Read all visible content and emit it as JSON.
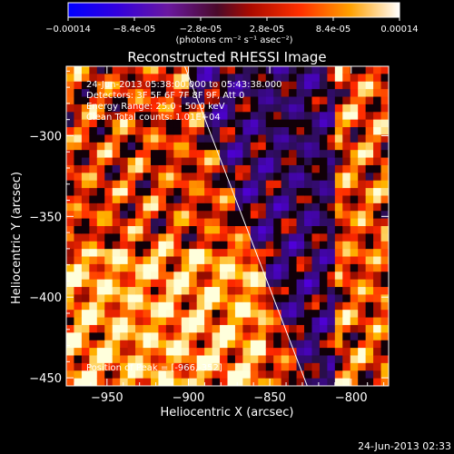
{
  "colorbar": {
    "ticks": [
      "-0.00014",
      "-8.4e-05",
      "-2.8e-05",
      "2.8e-05",
      "8.4e-05",
      "0.00014"
    ],
    "units_line": "(photons cm⁻² s⁻¹ asec⁻²)",
    "range": [
      -0.00014,
      0.00014
    ]
  },
  "chart_data": {
    "type": "heatmap",
    "title": "Reconstructed RHESSI Image",
    "xlabel": "Heliocentric X (arcsec)",
    "ylabel": "Heliocentric Y (arcsec)",
    "xlim": [
      -975,
      -777
    ],
    "ylim": [
      -455,
      -257
    ],
    "x_ticks": [
      -950,
      -900,
      -850,
      -800
    ],
    "y_ticks": [
      -300,
      -350,
      -400,
      -450
    ],
    "x_tick_labels": [
      "−950",
      "−900",
      "−850",
      "−800"
    ],
    "y_tick_labels": [
      "−300",
      "−350",
      "−400",
      "−450"
    ],
    "limb_line": [
      [
        -903,
        -255
      ],
      [
        -827,
        -455
      ]
    ],
    "peak_position": [
      -966,
      -352
    ],
    "annotations": [
      "24-Jun-2013 05:38:00.000 to 05:43:38.000",
      "Detectors: 3F 5F 6F 7F 8F 9F, Att 0",
      "Energy Range: 25.0 - 50.0 keV",
      "Clean    Total counts: 1.01E+04",
      "Position of Peak = [-966,-352]"
    ]
  },
  "footer": {
    "timestamp": "24-Jun-2013 02:33"
  }
}
